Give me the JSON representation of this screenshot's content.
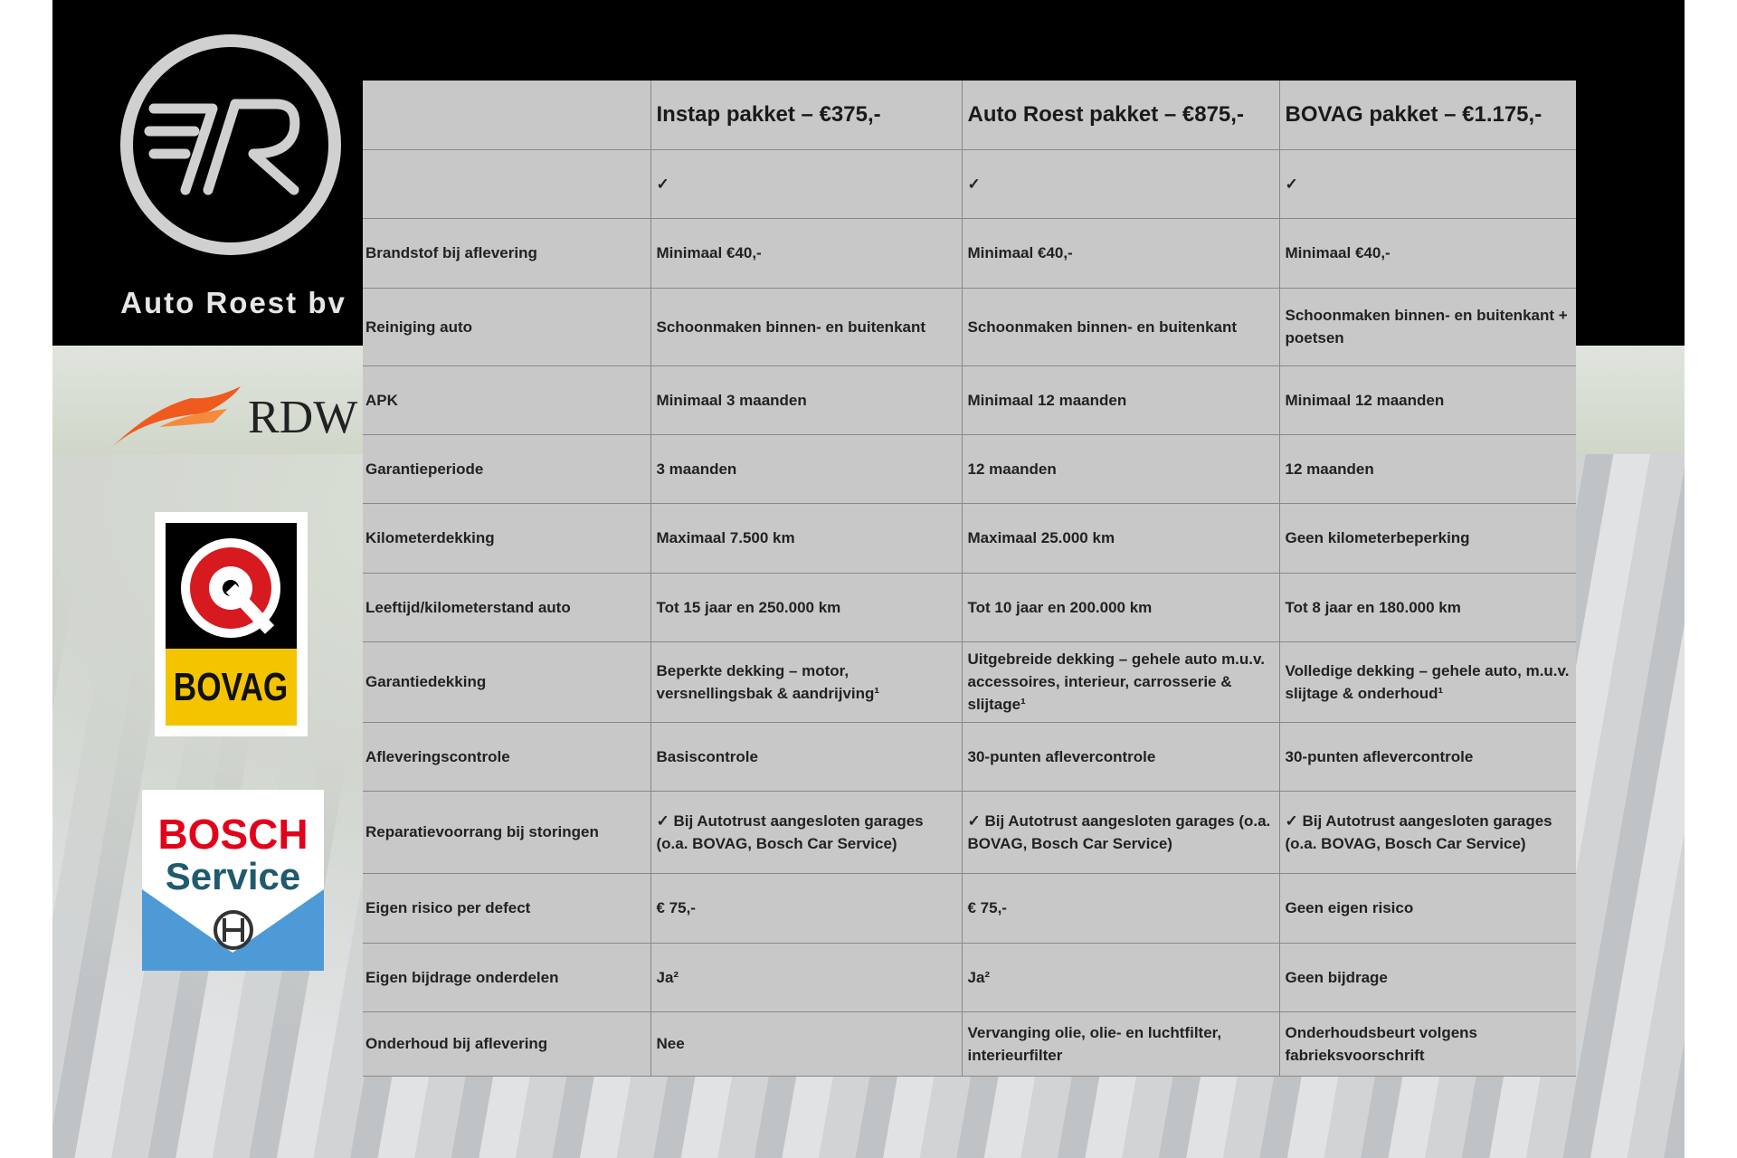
{
  "brand": {
    "name": "Auto Roest bv",
    "logo_letters": "7R"
  },
  "badges": {
    "rdw": "RDW",
    "bovag": "BOVAG",
    "bosch_line1": "BOSCH",
    "bosch_line2": "Service"
  },
  "colors": {
    "rdw_orange": "#f05a1e",
    "bovag_yellow": "#f5c400",
    "bovag_red": "#d71920",
    "bosch_red": "#e2001a",
    "bosch_teal": "#1f5a6e",
    "bosch_blue": "#4d9ad6",
    "table_bg": "#c8c8c8"
  },
  "table": {
    "headers": [
      "",
      "Instap pakket – €375,-",
      "Auto Roest pakket – €875,-",
      "BOVAG pakket – €1.175,-"
    ],
    "rows": [
      [
        "",
        "✓",
        "✓",
        "✓"
      ],
      [
        "Brandstof bij aflevering",
        "Minimaal €40,-",
        "Minimaal €40,-",
        "Minimaal €40,-"
      ],
      [
        "Reiniging auto",
        "Schoonmaken binnen- en buitenkant",
        "Schoonmaken binnen- en buitenkant",
        "Schoonmaken binnen- en buitenkant + poetsen"
      ],
      [
        "APK",
        "Minimaal 3 maanden",
        "Minimaal 12 maanden",
        "Minimaal 12 maanden"
      ],
      [
        "Garantieperiode",
        "3 maanden",
        "12 maanden",
        "12 maanden"
      ],
      [
        "Kilometerdekking",
        "Maximaal 7.500 km",
        "Maximaal 25.000 km",
        "Geen kilometerbeperking"
      ],
      [
        "Leeftijd/kilometerstand auto",
        "Tot 15 jaar en 250.000 km",
        "Tot 10 jaar en 200.000 km",
        "Tot 8 jaar en 180.000 km"
      ],
      [
        "Garantiedekking",
        "Beperkte dekking – motor, versnellingsbak & aandrijving¹",
        "Uitgebreide dekking – gehele auto m.u.v. accessoires, interieur, carrosserie & slijtage¹",
        "Volledige dekking – gehele auto, m.u.v. slijtage & onderhoud¹"
      ],
      [
        "Afleveringscontrole",
        "Basiscontrole",
        "30-punten aflevercontrole",
        "30-punten aflevercontrole"
      ],
      [
        "Reparatievoorrang bij storingen",
        "✓ Bij Autotrust aangesloten garages (o.a. BOVAG, Bosch Car Service)",
        "✓ Bij Autotrust aangesloten garages (o.a. BOVAG, Bosch Car Service)",
        "✓ Bij Autotrust aangesloten garages (o.a. BOVAG, Bosch Car Service)"
      ],
      [
        "Eigen risico per defect",
        "€ 75,-",
        "€ 75,-",
        "Geen eigen risico"
      ],
      [
        "Eigen bijdrage onderdelen",
        "Ja²",
        "Ja²",
        "Geen bijdrage"
      ],
      [
        "Onderhoud bij aflevering",
        "Nee",
        "Vervanging olie, olie- en luchtfilter, interieurfilter",
        "Onderhoudsbeurt volgens fabrieksvoorschrift"
      ]
    ]
  }
}
